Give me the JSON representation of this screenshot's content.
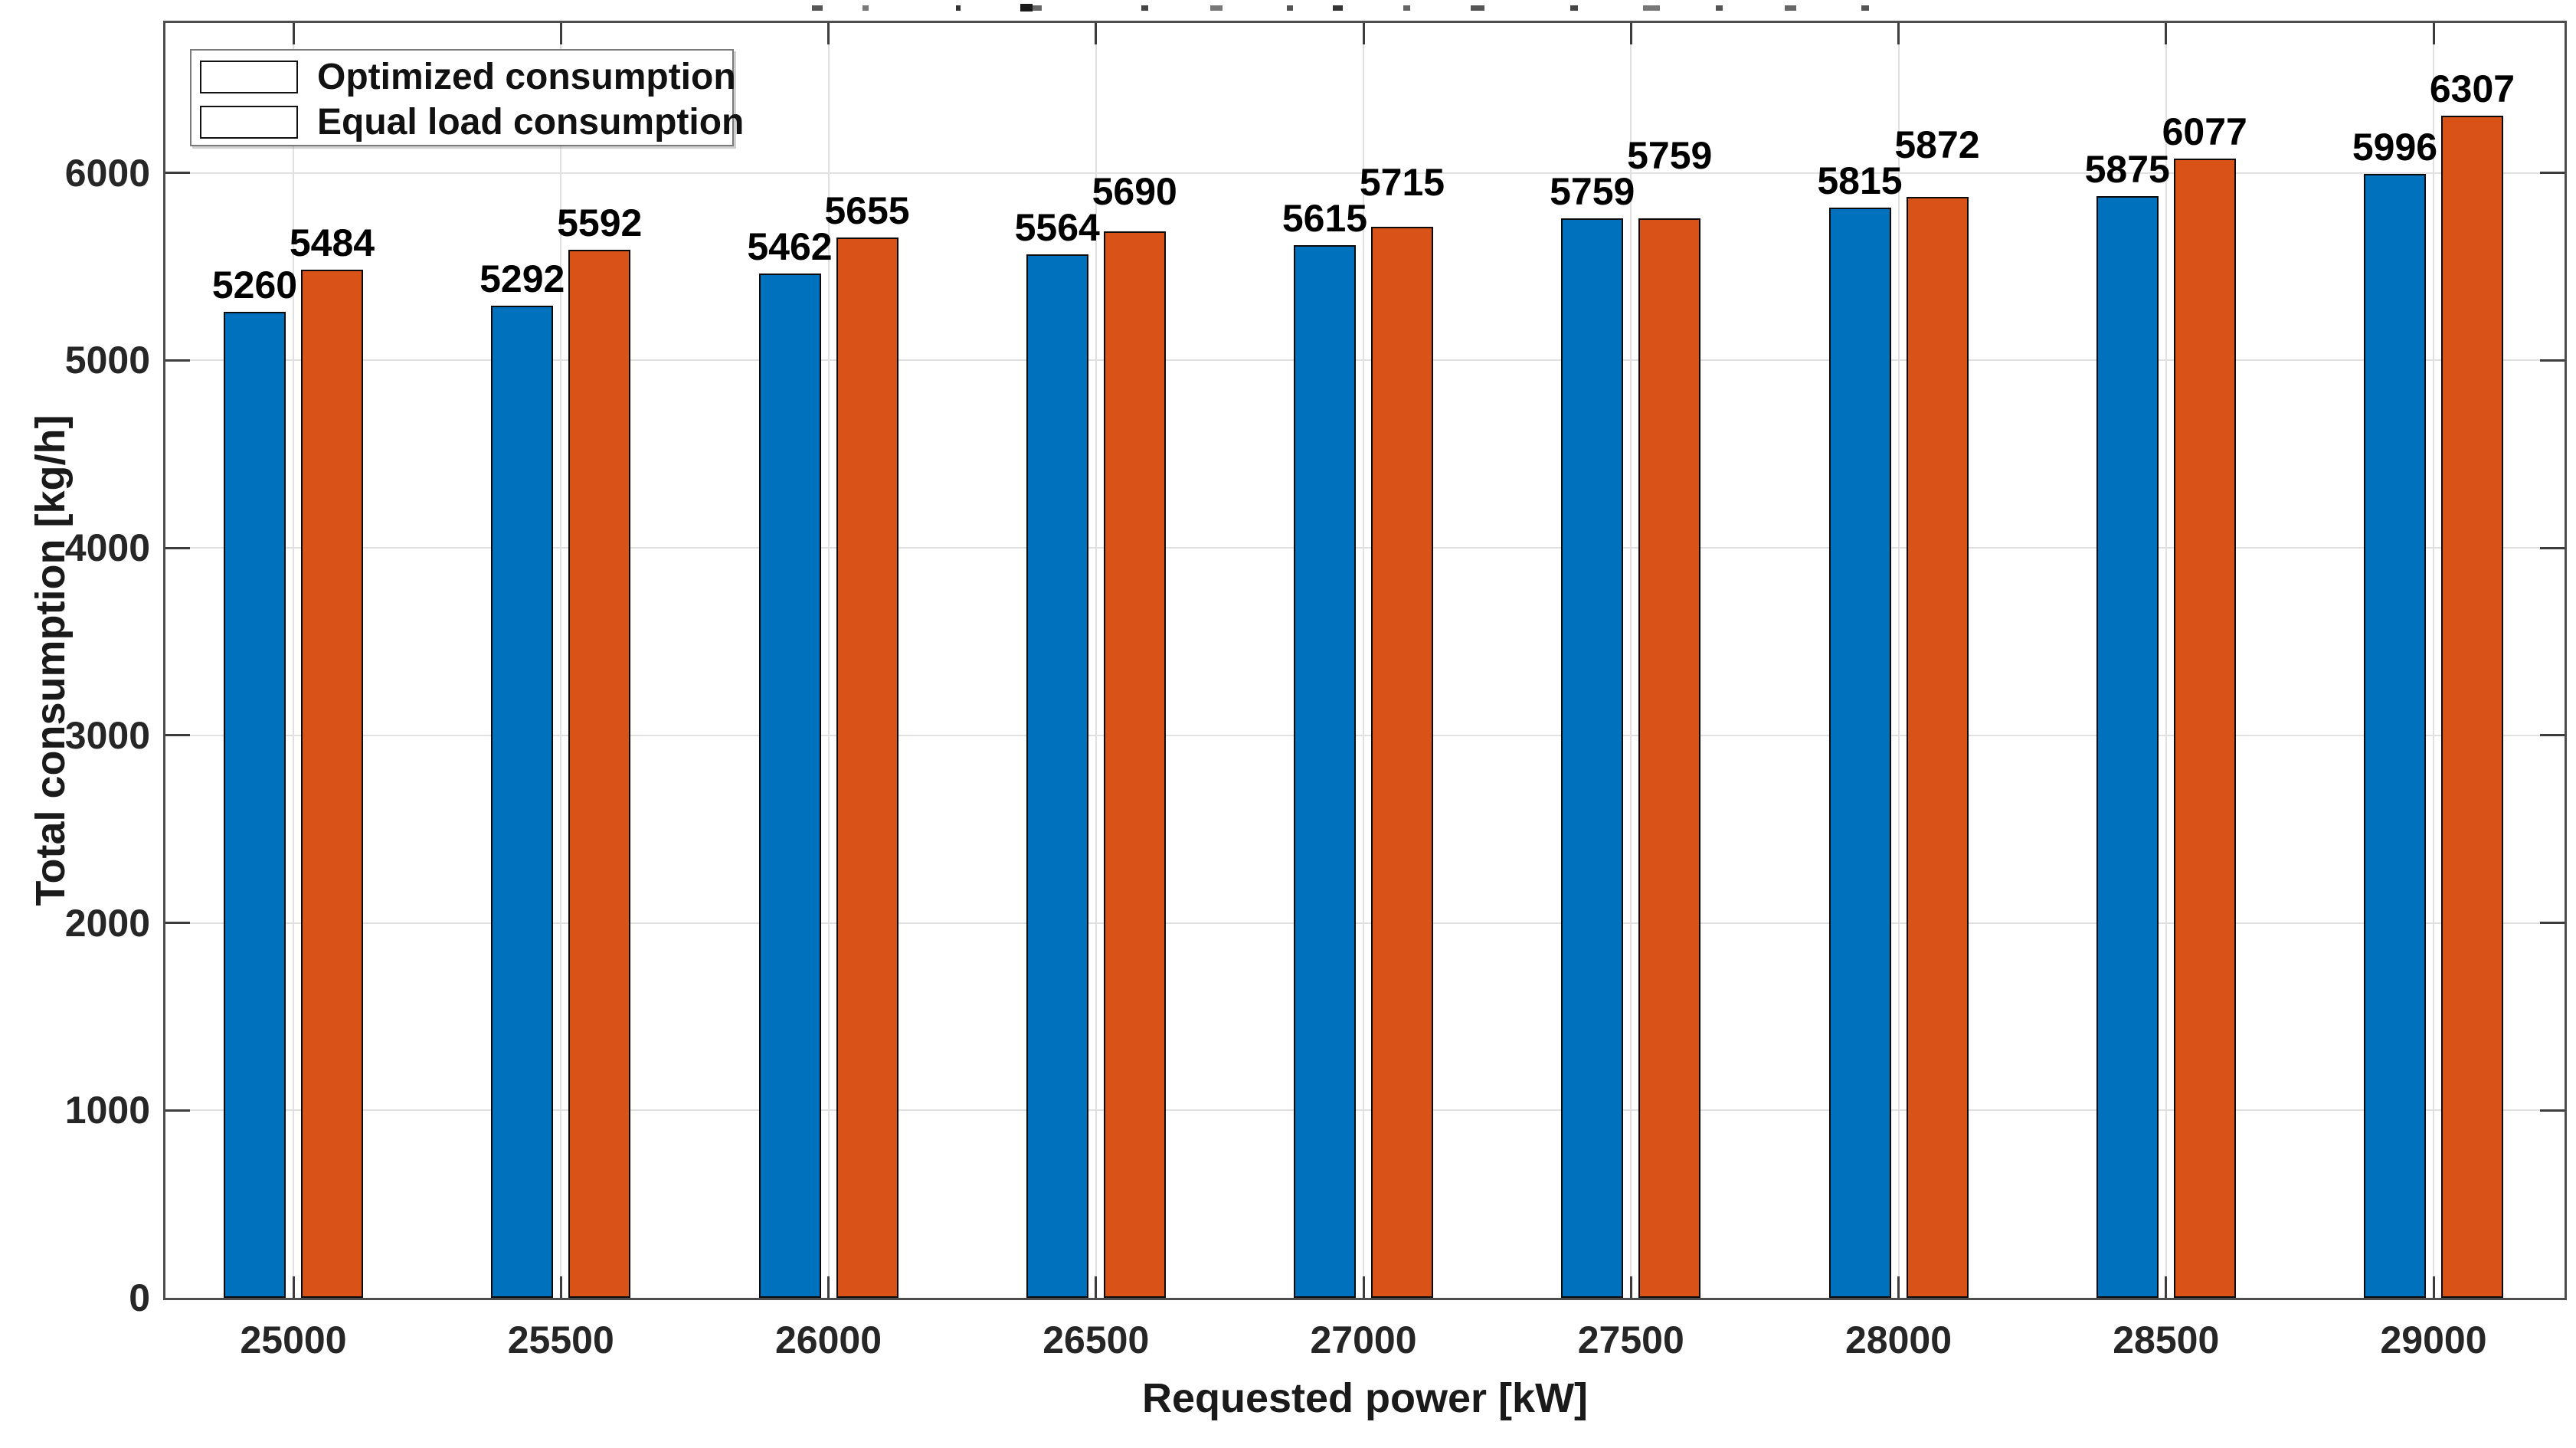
{
  "chart_data": {
    "type": "bar",
    "title": "",
    "xlabel": "Requested power [kW]",
    "ylabel": "Total consumption [kg/h]",
    "categories": [
      "25000",
      "25500",
      "26000",
      "26500",
      "27000",
      "27500",
      "28000",
      "28500",
      "29000"
    ],
    "series": [
      {
        "name": "Optimized consumption",
        "color": "#0072BD",
        "values": [
          5260,
          5292,
          5462,
          5564,
          5615,
          5759,
          5815,
          5875,
          5996
        ]
      },
      {
        "name": "Equal load consumption",
        "color": "#D95319",
        "values": [
          5484,
          5592,
          5655,
          5690,
          5715,
          5759,
          5872,
          6077,
          6307
        ]
      }
    ],
    "ylim": [
      0,
      6800
    ],
    "yticks": [
      0,
      1000,
      2000,
      3000,
      4000,
      5000,
      6000
    ],
    "grid": true,
    "bar_labels": true,
    "legend_position": "top-left"
  },
  "colors": {
    "axis_box": "#4d4d4d",
    "gridline": "#e0e0e0",
    "tick_mark": "#3c3c3c",
    "bar_edge": "#0a0a0a",
    "text": "#1a1a1a",
    "background": "#ffffff"
  }
}
